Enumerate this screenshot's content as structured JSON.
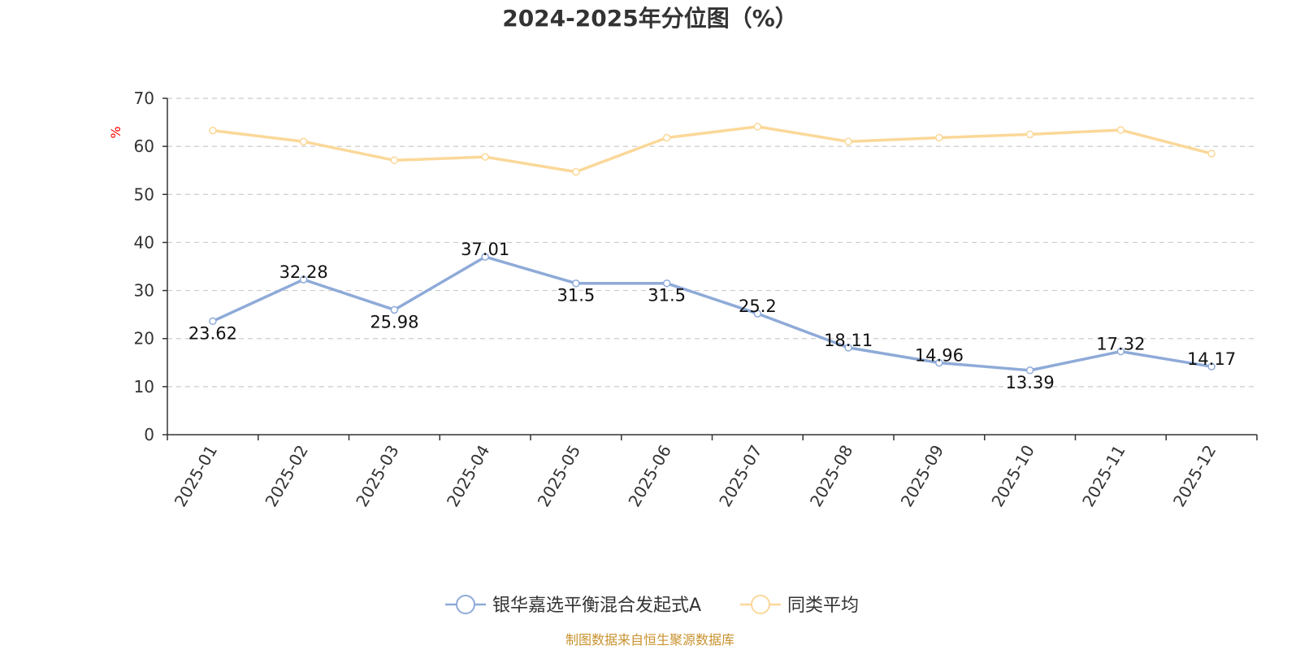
{
  "chart_data": {
    "type": "line",
    "title": "2024-2025年分位图（%）",
    "xlabel": "",
    "ylabel": "%",
    "ylim": [
      0,
      70
    ],
    "yticks": [
      0,
      10,
      20,
      30,
      40,
      50,
      60,
      70
    ],
    "grid": true,
    "legend_position": "bottom-center",
    "categories": [
      "2025-01",
      "2025-02",
      "2025-03",
      "2025-04",
      "2025-05",
      "2025-06",
      "2025-07",
      "2025-08",
      "2025-09",
      "2025-10",
      "2025-11",
      "2025-12"
    ],
    "series": [
      {
        "name": "银华嘉选平衡混合发起式A",
        "color": "#8eaad8",
        "values": [
          23.62,
          32.28,
          25.98,
          37.01,
          31.5,
          31.5,
          25.2,
          18.11,
          14.96,
          13.39,
          17.32,
          14.17
        ],
        "labels": [
          "23.62",
          "32.28",
          "25.98",
          "37.01",
          "31.5",
          "31.5",
          "25.2",
          "18.11",
          "14.96",
          "13.39",
          "17.32",
          "14.17"
        ],
        "label_position": [
          "below",
          "above",
          "below",
          "above",
          "below",
          "below",
          "above",
          "above",
          "above",
          "below",
          "above",
          "above"
        ]
      },
      {
        "name": "同类平均",
        "color": "#fbd899",
        "values": [
          63.3,
          61.0,
          57.1,
          57.8,
          54.7,
          61.8,
          64.1,
          61.0,
          61.8,
          62.5,
          63.4,
          58.5
        ]
      }
    ],
    "source": "制图数据来自恒生聚源数据库",
    "source_color": "#c8922e"
  }
}
